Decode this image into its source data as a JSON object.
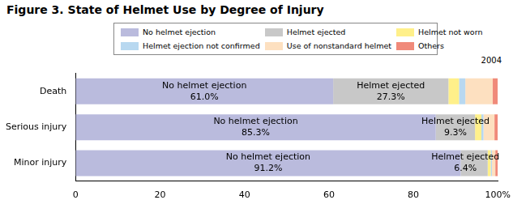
{
  "chart_data": {
    "type": "bar",
    "title": "Figure 3. State of Helmet Use by Degree of Injury",
    "subtitle": "2004",
    "orientation": "horizontal",
    "stacked": true,
    "data_labels": true,
    "grid": false,
    "legend": "top",
    "categories": [
      "Death",
      "Serious injury",
      "Minor injury"
    ],
    "series": [
      {
        "name": "No helmet ejection",
        "color": "#babbdd",
        "values": [
          61.0,
          85.3,
          91.2
        ],
        "value_labels": [
          "61.0%",
          "85.3%",
          "91.2%"
        ]
      },
      {
        "name": "Helmet ejected",
        "color": "#c8c8c8",
        "values": [
          27.3,
          9.3,
          6.4
        ],
        "value_labels": [
          "27.3%",
          "9.3%",
          "6.4%"
        ]
      },
      {
        "name": "Helmet not worn",
        "color": "#fff08a",
        "values": [
          2.5,
          1.5,
          0.7
        ]
      },
      {
        "name": "Helmet ejection not confirmed",
        "color": "#b8d8f0",
        "values": [
          1.5,
          0.5,
          0.3
        ]
      },
      {
        "name": "Use of nonstandard helmet",
        "color": "#fde0c0",
        "values": [
          6.5,
          2.6,
          0.8
        ]
      },
      {
        "name": "Others",
        "color": "#f08a7a",
        "values": [
          1.2,
          0.8,
          0.6
        ]
      }
    ],
    "xlim": [
      0,
      100
    ],
    "xticks": [
      0,
      20,
      40,
      60,
      80,
      {
        "value": 100,
        "label": "100%"
      }
    ]
  }
}
